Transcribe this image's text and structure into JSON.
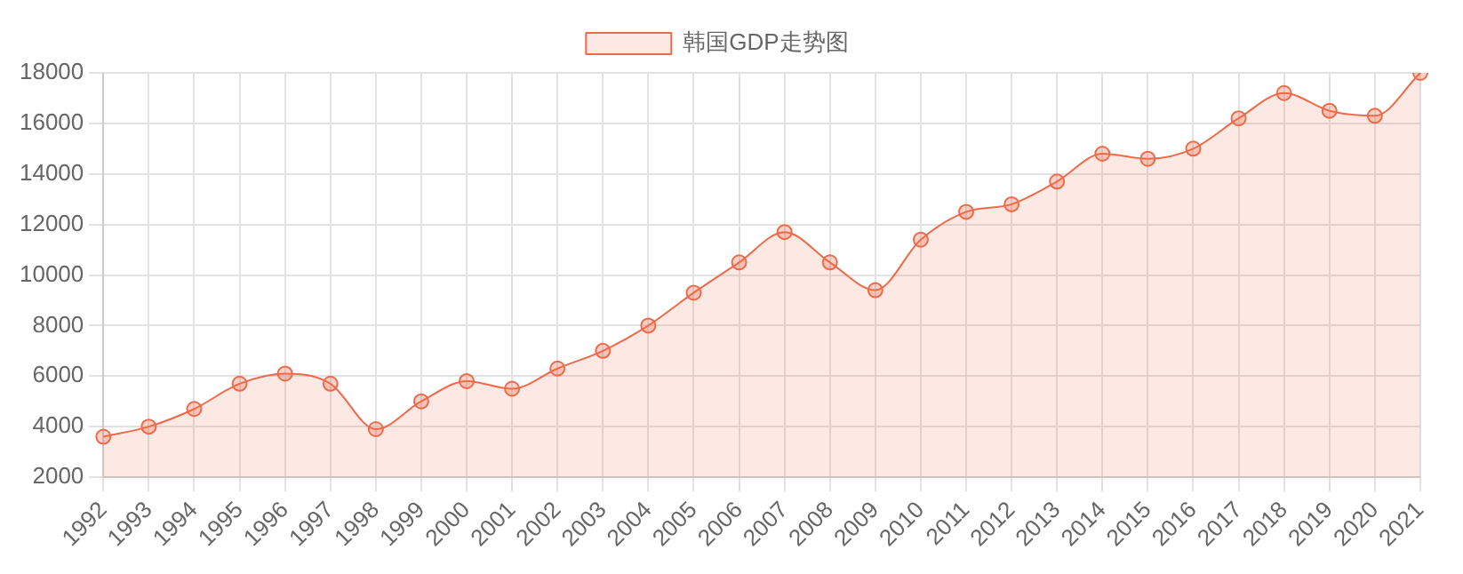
{
  "chart_data": {
    "type": "area",
    "categories": [
      "1992",
      "1993",
      "1994",
      "1995",
      "1996",
      "1997",
      "1998",
      "1999",
      "2000",
      "2001",
      "2002",
      "2003",
      "2004",
      "2005",
      "2006",
      "2007",
      "2008",
      "2009",
      "2010",
      "2011",
      "2012",
      "2013",
      "2014",
      "2015",
      "2016",
      "2017",
      "2018",
      "2019",
      "2020",
      "2021"
    ],
    "series": [
      {
        "name": "韩国GDP走势图",
        "color": "#ee6a4a",
        "values": [
          3600,
          4000,
          4700,
          5700,
          6100,
          5700,
          3900,
          5000,
          5800,
          5500,
          6300,
          7000,
          8000,
          9300,
          10500,
          11700,
          10500,
          9400,
          11400,
          12500,
          12800,
          13700,
          14800,
          14600,
          15000,
          16200,
          17200,
          16500,
          16300,
          18000
        ]
      }
    ],
    "ylim": [
      2000,
      18000
    ],
    "yticks": [
      2000,
      4000,
      6000,
      8000,
      10000,
      12000,
      14000,
      16000,
      18000
    ],
    "grid": true,
    "legend": "top",
    "marker": "circle",
    "line_style": "solid"
  }
}
